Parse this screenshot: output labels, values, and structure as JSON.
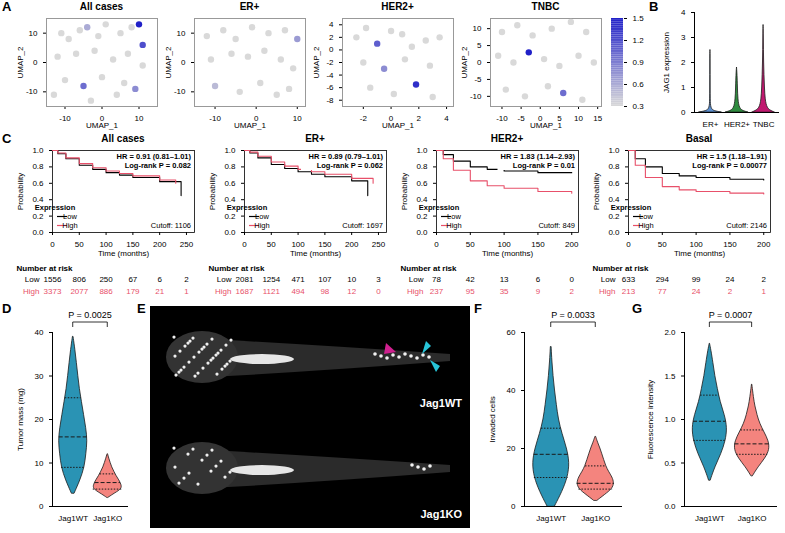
{
  "chart_data": [
    {
      "panel": "A",
      "type": "scatter",
      "title": "All cases",
      "xlabel": "UMAP_1",
      "ylabel": "UMAP_2",
      "xlim": [
        -15,
        15
      ],
      "xticks": [
        -10,
        0,
        10
      ],
      "ylim": [
        -15,
        15
      ],
      "yticks": [
        -10,
        0,
        10
      ],
      "x": [
        -11,
        -9,
        -6,
        -4,
        -1,
        1,
        5,
        8,
        10,
        11,
        -12,
        -7,
        -2,
        3,
        7,
        11,
        -10,
        -5,
        0,
        4,
        9,
        -13,
        -3,
        6
      ],
      "y": [
        10,
        8,
        11,
        12,
        9,
        13,
        10,
        12,
        13,
        6,
        2,
        3,
        4,
        1,
        3,
        -1,
        -6,
        -8,
        -5,
        -11,
        -9,
        -11,
        -13,
        -7
      ],
      "expression": [
        0.3,
        0.3,
        0.3,
        0.6,
        0.3,
        0.3,
        0.3,
        0.3,
        1.5,
        1.2,
        0.3,
        0.3,
        0.3,
        0.3,
        0.3,
        0.3,
        0.3,
        1.0,
        0.3,
        0.3,
        0.8,
        0.3,
        0.3,
        0.3
      ]
    },
    {
      "type": "scatter",
      "title": "ER+",
      "xlabel": "UMAP_1",
      "ylabel": "UMAP_2",
      "xlim": [
        -15,
        12
      ],
      "xticks": [
        -10,
        0,
        10
      ],
      "ylim": [
        -15,
        15
      ],
      "yticks": [
        -10,
        0,
        10
      ],
      "x": [
        -12,
        -8,
        -5,
        -1,
        3,
        7,
        10,
        -11,
        -6,
        -2,
        2,
        6,
        9,
        -10,
        -4,
        1,
        5,
        8
      ],
      "y": [
        9,
        11,
        8,
        12,
        10,
        11,
        8,
        1,
        3,
        2,
        4,
        1,
        -2,
        -8,
        -10,
        -7,
        -11,
        -9
      ],
      "expression": [
        0.3,
        0.3,
        0.3,
        0.3,
        0.3,
        0.3,
        0.7,
        0.3,
        0.3,
        0.3,
        0.3,
        0.3,
        0.3,
        0.5,
        0.3,
        0.3,
        0.3,
        0.3
      ]
    },
    {
      "type": "scatter",
      "title": "HER2+",
      "xlabel": "UMAP_1",
      "ylabel": "UMAP_2",
      "xlim": [
        -3.5,
        4.5
      ],
      "xticks": [
        -2,
        0,
        2,
        4
      ],
      "ylim": [
        -9,
        5
      ],
      "yticks": [
        -8,
        -6,
        -4,
        -2,
        0,
        2,
        4
      ],
      "x": [
        -2.5,
        -1.8,
        -1,
        0,
        0.8,
        1.5,
        2.5,
        3.5,
        -2,
        -0.5,
        1,
        2.8,
        -1.5,
        0.2,
        1.8,
        3
      ],
      "y": [
        2,
        3.5,
        1,
        3,
        2.5,
        0.5,
        1.5,
        2,
        -2,
        -3,
        -1.5,
        -2.5,
        -6,
        -7,
        -5.5,
        -7.5
      ],
      "expression": [
        0.3,
        0.3,
        1.1,
        0.3,
        0.3,
        0.3,
        0.3,
        0.3,
        0.3,
        0.8,
        0.3,
        0.3,
        0.3,
        0.3,
        1.4,
        0.3
      ]
    },
    {
      "type": "scatter",
      "title": "TNBC",
      "xlabel": "UMAP_1",
      "ylabel": "UMAP_2",
      "xlim": [
        -13,
        16
      ],
      "xticks": [
        -10,
        -5,
        0,
        5,
        10,
        15
      ],
      "ylim": [
        -13,
        13
      ],
      "yticks": [
        -10,
        -5,
        0,
        5,
        10
      ],
      "x": [
        -10,
        -6,
        -2,
        3,
        8,
        12,
        -11,
        -7,
        -3,
        1,
        5,
        10,
        14,
        -9,
        -4,
        2,
        6,
        11
      ],
      "y": [
        9,
        11,
        8,
        10,
        12,
        9,
        2,
        0,
        3,
        1,
        -1,
        2,
        0,
        -8,
        -10,
        -7,
        -9,
        -11
      ],
      "expression": [
        0.3,
        0.3,
        0.3,
        0.3,
        0.3,
        0.3,
        0.3,
        0.3,
        1.5,
        0.3,
        0.3,
        0.3,
        0.3,
        0.3,
        0.3,
        0.3,
        1.0,
        0.3
      ],
      "colorbar": {
        "range": [
          0.3,
          1.5
        ],
        "ticks": [
          0.3,
          0.6,
          0.9,
          1.2,
          1.5
        ],
        "colors": [
          "#d9d9d9",
          "#2020c8"
        ]
      }
    },
    {
      "panel": "B",
      "type": "violin",
      "ylabel": "JAG1 expression",
      "categories": [
        "ER+",
        "HER2+",
        "TNBC"
      ],
      "ylim": [
        0,
        4
      ],
      "yticks": [
        0,
        1,
        2,
        3,
        4
      ],
      "violins": [
        {
          "color": "#5b8fd0",
          "y": [
            0,
            0.05,
            0.15,
            0.5,
            1,
            1.5,
            2,
            2.5
          ],
          "density": [
            1,
            0.35,
            0.06,
            0.02,
            0.015,
            0.01,
            0.01,
            0
          ]
        },
        {
          "color": "#2e8b3e",
          "y": [
            0,
            0.05,
            0.15,
            0.5,
            1,
            1.5,
            1.8
          ],
          "density": [
            1,
            0.6,
            0.25,
            0.12,
            0.08,
            0.05,
            0
          ]
        },
        {
          "color": "#c0196f",
          "y": [
            0,
            0.05,
            0.15,
            0.5,
            1,
            1.5,
            2,
            2.5,
            3,
            3.5
          ],
          "density": [
            1,
            0.75,
            0.35,
            0.18,
            0.12,
            0.08,
            0.05,
            0.03,
            0.02,
            0
          ]
        }
      ]
    },
    {
      "panel": "C",
      "type": "survival",
      "title": "All cases",
      "xlabel": "Time (months)",
      "ylabel": "Probability",
      "xlim": [
        0,
        265
      ],
      "xticks": [
        0,
        50,
        100,
        150,
        200,
        250
      ],
      "ylim": [
        0,
        1
      ],
      "yticks": [
        {
          "value": 0,
          "label": "0.0"
        },
        0.2,
        0.4,
        0.6,
        0.8,
        {
          "value": 1,
          "label": "1.0"
        }
      ],
      "legend": "bottom-left",
      "legend_title": "Expression",
      "annotations": [
        "HR = 0.91 (0.81–1.01)",
        "Log-rank P = 0.082",
        "Cutoff: 1106"
      ],
      "risk_label": "Number at risk",
      "risk_times": [
        0,
        50,
        100,
        150,
        200,
        250
      ],
      "series": [
        {
          "name": "Low",
          "color": "#000000",
          "time": [
            0,
            10,
            25,
            50,
            75,
            100,
            125,
            150,
            200,
            240
          ],
          "values": [
            1,
            0.96,
            0.9,
            0.82,
            0.77,
            0.73,
            0.7,
            0.67,
            0.62,
            0.45
          ],
          "at_risk": [
            1556,
            806,
            250,
            67,
            6,
            2
          ]
        },
        {
          "name": "High",
          "color": "#e8506a",
          "time": [
            0,
            10,
            25,
            50,
            75,
            100,
            125,
            150,
            200,
            230
          ],
          "values": [
            1,
            0.97,
            0.91,
            0.84,
            0.79,
            0.75,
            0.72,
            0.69,
            0.64,
            0.6
          ],
          "at_risk": [
            3373,
            2077,
            886,
            179,
            21,
            1
          ]
        }
      ]
    },
    {
      "type": "survival",
      "title": "ER+",
      "xlabel": "Time (months)",
      "ylabel": "Probability",
      "xlim": [
        0,
        265
      ],
      "xticks": [
        0,
        50,
        100,
        150,
        200,
        250
      ],
      "ylim": [
        0,
        1
      ],
      "yticks": [
        {
          "value": 0,
          "label": "0.0"
        },
        0.2,
        0.4,
        0.6,
        0.8,
        {
          "value": 1,
          "label": "1.0"
        }
      ],
      "legend": "bottom-left",
      "legend_title": "Expression",
      "annotations": [
        "HR = 0.89 (0.79–1.01)",
        "Log-rank P = 0.062",
        "Cutoff: 1697"
      ],
      "risk_label": "Number at risk",
      "risk_times": [
        0,
        50,
        100,
        150,
        200,
        250
      ],
      "series": [
        {
          "name": "Low",
          "color": "#000000",
          "time": [
            0,
            10,
            25,
            50,
            75,
            100,
            125,
            150,
            200,
            230
          ],
          "values": [
            1,
            0.97,
            0.91,
            0.83,
            0.78,
            0.74,
            0.71,
            0.68,
            0.63,
            0.45
          ],
          "at_risk": [
            2081,
            1254,
            471,
            107,
            10,
            3
          ]
        },
        {
          "name": "High",
          "color": "#e8506a",
          "time": [
            0,
            10,
            25,
            50,
            75,
            100,
            125,
            150,
            200,
            240
          ],
          "values": [
            1,
            0.98,
            0.93,
            0.86,
            0.81,
            0.77,
            0.74,
            0.71,
            0.66,
            0.6
          ],
          "at_risk": [
            1687,
            1121,
            494,
            98,
            12,
            0
          ]
        }
      ]
    },
    {
      "type": "survival",
      "title": "HER2+",
      "xlabel": "Time (months)",
      "ylabel": "Probability",
      "xlim": [
        0,
        210
      ],
      "xticks": [
        0,
        50,
        100,
        150,
        200
      ],
      "ylim": [
        0,
        1
      ],
      "yticks": [
        {
          "value": 0,
          "label": "0.0"
        },
        0.2,
        0.4,
        0.6,
        0.8,
        {
          "value": 1,
          "label": "1.0"
        }
      ],
      "legend": "bottom-left",
      "legend_title": "Expression",
      "annotations": [
        "HR = 1.83 (1.14–2.93)",
        "Log-rank P = 0.01",
        "Cutoff: 849"
      ],
      "risk_label": "Number at risk",
      "risk_times": [
        0,
        50,
        100,
        150,
        200
      ],
      "series": [
        {
          "name": "Low",
          "color": "#000000",
          "time": [
            0,
            10,
            25,
            50,
            75,
            100,
            150,
            200
          ],
          "values": [
            1,
            0.95,
            0.87,
            0.8,
            0.77,
            0.75,
            0.73,
            0.73
          ],
          "at_risk": [
            78,
            42,
            13,
            6,
            0
          ]
        },
        {
          "name": "High",
          "color": "#e8506a",
          "time": [
            0,
            10,
            25,
            50,
            75,
            100,
            150,
            200
          ],
          "values": [
            1,
            0.9,
            0.76,
            0.63,
            0.57,
            0.54,
            0.5,
            0.48
          ],
          "at_risk": [
            237,
            95,
            35,
            9,
            2
          ]
        }
      ]
    },
    {
      "type": "survival",
      "title": "Basal",
      "xlabel": "Time (months)",
      "ylabel": "Probability",
      "xlim": [
        0,
        210
      ],
      "xticks": [
        0,
        50,
        100,
        150,
        200
      ],
      "ylim": [
        0,
        1
      ],
      "yticks": [
        {
          "value": 0,
          "label": "0.0"
        },
        0.2,
        0.4,
        0.6,
        0.8,
        {
          "value": 1,
          "label": "1.0"
        }
      ],
      "legend": "bottom-left",
      "legend_title": "Expression",
      "annotations": [
        "HR = 1.5 (1.18–1.91)",
        "Log-rank P = 0.00077",
        "Cutoff: 2146"
      ],
      "risk_label": "Number at risk",
      "risk_times": [
        0,
        50,
        100,
        150,
        200
      ],
      "series": [
        {
          "name": "Low",
          "color": "#000000",
          "time": [
            0,
            10,
            25,
            50,
            75,
            100,
            150,
            200
          ],
          "values": [
            1,
            0.9,
            0.8,
            0.72,
            0.69,
            0.67,
            0.65,
            0.64
          ],
          "at_risk": [
            633,
            294,
            99,
            24,
            2
          ]
        },
        {
          "name": "High",
          "color": "#e8506a",
          "time": [
            0,
            10,
            25,
            50,
            75,
            100,
            150,
            200
          ],
          "values": [
            1,
            0.82,
            0.67,
            0.56,
            0.52,
            0.5,
            0.48,
            0.47
          ],
          "at_risk": [
            213,
            77,
            24,
            2,
            1
          ]
        }
      ]
    },
    {
      "panel": "D",
      "type": "violin",
      "ylabel": "Tumor mass (mg)",
      "categories": [
        "Jag1WT",
        "Jag1KO"
      ],
      "ylim": [
        0,
        40
      ],
      "yticks": [
        0,
        10,
        20,
        30,
        40
      ],
      "annotations": [
        "P = 0.0025"
      ],
      "violins": [
        {
          "color": "#2a93b4",
          "y": [
            3,
            6,
            9,
            12,
            15,
            18,
            21,
            24,
            27,
            30,
            33,
            36,
            39
          ],
          "density": [
            0.1,
            0.5,
            0.8,
            0.9,
            1,
            0.9,
            0.75,
            0.6,
            0.45,
            0.35,
            0.25,
            0.15,
            0.02
          ],
          "median": 16,
          "quartiles": [
            9,
            25
          ]
        },
        {
          "color": "#f4847e",
          "y": [
            2,
            3,
            4,
            5,
            6,
            7,
            8,
            9,
            10,
            11,
            12
          ],
          "density": [
            0.05,
            0.5,
            1,
            0.95,
            0.8,
            0.6,
            0.45,
            0.3,
            0.2,
            0.1,
            0.02
          ],
          "median": 5.5,
          "quartiles": [
            4,
            7.5
          ]
        }
      ]
    },
    {
      "panel": "E",
      "type": "image",
      "labels": [
        "Jag1WT",
        "Jag1KO"
      ]
    },
    {
      "panel": "F",
      "type": "violin",
      "ylabel": "Invaded cells",
      "categories": [
        "Jag1WT",
        "Jag1KO"
      ],
      "ylim": [
        0,
        60
      ],
      "yticks": [
        0,
        20,
        40,
        60
      ],
      "annotations": [
        "P = 0.0033"
      ],
      "violins": [
        {
          "color": "#2a93b4",
          "y": [
            0,
            5,
            10,
            15,
            20,
            25,
            30,
            35,
            40,
            45,
            50,
            55
          ],
          "density": [
            0.2,
            0.6,
            0.9,
            1,
            0.85,
            0.6,
            0.4,
            0.3,
            0.2,
            0.12,
            0.06,
            0.02
          ],
          "median": 18,
          "quartiles": [
            10,
            27
          ]
        },
        {
          "color": "#f4847e",
          "y": [
            2,
            4,
            6,
            8,
            10,
            12,
            14,
            16,
            18,
            20,
            22,
            24
          ],
          "density": [
            0.1,
            0.5,
            0.9,
            1,
            0.9,
            0.7,
            0.55,
            0.45,
            0.35,
            0.25,
            0.12,
            0.02
          ],
          "median": 8,
          "quartiles": [
            6,
            14
          ]
        }
      ]
    },
    {
      "panel": "G",
      "type": "violin",
      "ylabel": "Fluorescence intensity",
      "categories": [
        "Jag1WT",
        "Jag1KO"
      ],
      "ylim": [
        0,
        2
      ],
      "yticks": [
        {
          "value": 0,
          "label": "0.0"
        },
        0.5,
        {
          "value": 1,
          "label": "1.0"
        },
        1.5,
        {
          "value": 2,
          "label": "2.0"
        }
      ],
      "annotations": [
        "P = 0.0007"
      ],
      "violins": [
        {
          "color": "#2a93b4",
          "y": [
            0.3,
            0.45,
            0.6,
            0.75,
            0.9,
            1.05,
            1.2,
            1.35,
            1.5,
            1.65,
            1.8,
            1.87
          ],
          "density": [
            0.05,
            0.3,
            0.65,
            0.9,
            1,
            0.85,
            0.6,
            0.45,
            0.3,
            0.2,
            0.08,
            0.01
          ],
          "median": 0.98,
          "quartiles": [
            0.76,
            1.28
          ]
        },
        {
          "color": "#f4847e",
          "y": [
            0.35,
            0.45,
            0.55,
            0.65,
            0.75,
            0.85,
            0.95,
            1.05,
            1.15,
            1.25,
            1.4
          ],
          "density": [
            0.05,
            0.35,
            0.75,
            1,
            0.95,
            0.7,
            0.45,
            0.3,
            0.18,
            0.1,
            0.01
          ],
          "median": 0.72,
          "quartiles": [
            0.6,
            0.88
          ]
        }
      ]
    }
  ]
}
